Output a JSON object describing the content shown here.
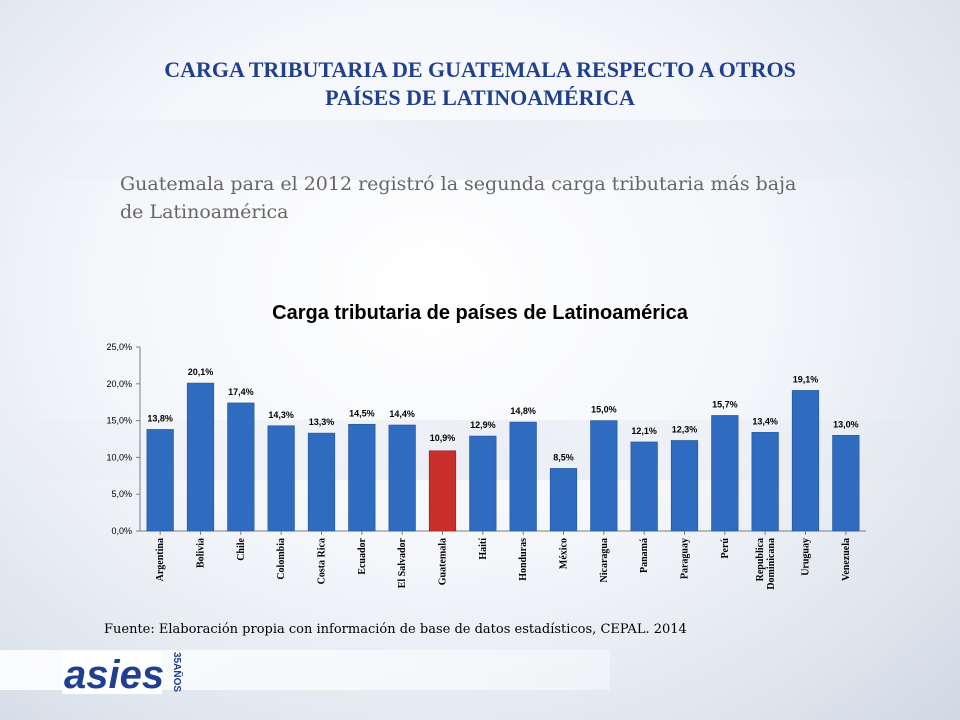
{
  "slide": {
    "title_line1": "CARGA TRIBUTARIA DE GUATEMALA RESPECTO A OTROS",
    "title_line2": "PAÍSES DE LATINOAMÉRICA",
    "subtitle": "Guatemala para el 2012 registró la segunda carga tributaria más baja de Latinoamérica",
    "source": "Fuente: Elaboración propia con información de base de datos estadísticos, CEPAL. 2014"
  },
  "logo": {
    "text": "asies",
    "badge": "35AÑOS"
  },
  "colors": {
    "title": "#1f3f8f",
    "bar": "#2f6bbf",
    "highlight": "#c9302c"
  },
  "chart_data": {
    "type": "bar",
    "title": "Carga tributaria de países de Latinoamérica",
    "xlabel": "",
    "ylabel": "",
    "ylim": [
      0,
      25
    ],
    "yticks": [
      "0,0%",
      "5,0%",
      "10,0%",
      "15,0%",
      "20,0%",
      "25,0%"
    ],
    "grid": false,
    "categories": [
      "Argentina",
      "Bolivia",
      "Chile",
      "Colombia",
      "Costa Rica",
      "Ecuador",
      "El Salvador",
      "Guatemala",
      "Haití",
      "Honduras",
      "México",
      "Nicaragua",
      "Panamá",
      "Paraguay",
      "Perú",
      "Republica Dominicana",
      "Uruguay",
      "Venezuela"
    ],
    "values": [
      13.8,
      20.1,
      17.4,
      14.3,
      13.3,
      14.5,
      14.4,
      10.9,
      12.9,
      14.8,
      8.5,
      15.0,
      12.1,
      12.3,
      15.7,
      13.4,
      19.1,
      13.0
    ],
    "labels": [
      "13,8%",
      "20,1%",
      "17,4%",
      "14,3%",
      "13,3%",
      "14,5%",
      "14,4%",
      "10,9%",
      "12,9%",
      "14,8%",
      "8,5%",
      "15,0%",
      "12,1%",
      "12,3%",
      "15,7%",
      "13,4%",
      "19,1%",
      "13,0%"
    ],
    "highlight_category": "Guatemala"
  }
}
